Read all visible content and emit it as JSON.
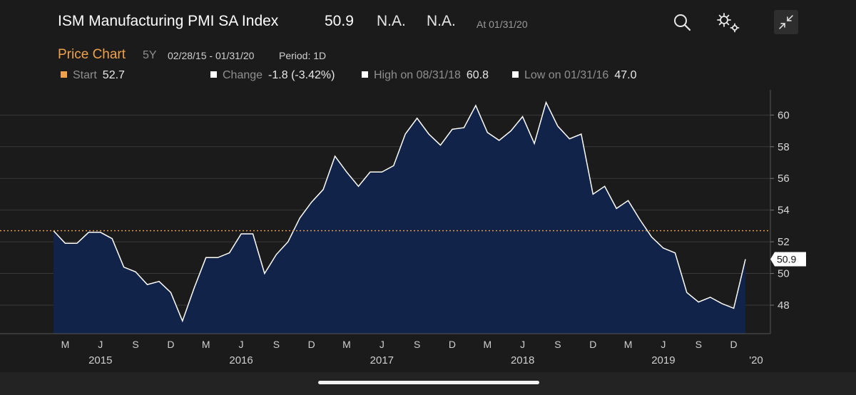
{
  "header": {
    "title": "ISM Manufacturing PMI SA Index",
    "last_value": "50.9",
    "change_field": "N.A.",
    "pct_field": "N.A.",
    "as_of": "At 01/31/20"
  },
  "subheader": {
    "chart_type": "Price Chart",
    "range": "5Y",
    "dates": "02/28/15 - 01/31/20",
    "period": "Period: 1D"
  },
  "stats": {
    "start_label": "Start",
    "start_value": "52.7",
    "change_label": "Change",
    "change_value": "-1.8 (-3.42%)",
    "high_label": "High on 08/31/18",
    "high_value": "60.8",
    "low_label": "Low on 01/31/16",
    "low_value": "47.0"
  },
  "colors": {
    "accent": "#f0a24a",
    "area_fill": "#12234a",
    "line": "#ffffff",
    "grid": "#3a3a3a"
  },
  "icons": {
    "search": "search-icon",
    "settings": "gear-icon",
    "collapse": "collapse-icon"
  },
  "chart_data": {
    "type": "area",
    "title": "ISM Manufacturing PMI SA Index",
    "x_start": "2015-02",
    "x": [
      "2015-02",
      "2015-03",
      "2015-04",
      "2015-05",
      "2015-06",
      "2015-07",
      "2015-08",
      "2015-09",
      "2015-10",
      "2015-11",
      "2015-12",
      "2016-01",
      "2016-02",
      "2016-03",
      "2016-04",
      "2016-05",
      "2016-06",
      "2016-07",
      "2016-08",
      "2016-09",
      "2016-10",
      "2016-11",
      "2016-12",
      "2017-01",
      "2017-02",
      "2017-03",
      "2017-04",
      "2017-05",
      "2017-06",
      "2017-07",
      "2017-08",
      "2017-09",
      "2017-10",
      "2017-11",
      "2017-12",
      "2018-01",
      "2018-02",
      "2018-03",
      "2018-04",
      "2018-05",
      "2018-06",
      "2018-07",
      "2018-08",
      "2018-09",
      "2018-10",
      "2018-11",
      "2018-12",
      "2019-01",
      "2019-02",
      "2019-03",
      "2019-04",
      "2019-05",
      "2019-06",
      "2019-07",
      "2019-08",
      "2019-09",
      "2019-10",
      "2019-11",
      "2019-12",
      "2020-01"
    ],
    "values": [
      52.7,
      51.9,
      51.9,
      52.6,
      52.6,
      52.2,
      50.4,
      50.1,
      49.3,
      49.5,
      48.8,
      47.0,
      49.1,
      51.0,
      51.0,
      51.3,
      52.5,
      52.5,
      50.0,
      51.2,
      52.0,
      53.5,
      54.5,
      55.3,
      57.4,
      56.4,
      55.5,
      56.4,
      56.4,
      56.8,
      58.8,
      59.8,
      58.8,
      58.1,
      59.1,
      59.2,
      60.6,
      58.9,
      58.4,
      59.0,
      59.9,
      58.2,
      60.8,
      59.3,
      58.5,
      58.8,
      55.0,
      55.5,
      54.1,
      54.6,
      53.4,
      52.3,
      51.6,
      51.3,
      48.8,
      48.2,
      48.5,
      48.1,
      47.8,
      50.9
    ],
    "start_reference": 52.7,
    "last_label": "50.9",
    "ylim": [
      46.2,
      61.5
    ],
    "yticks": [
      "48",
      "50",
      "52",
      "54",
      "56",
      "58",
      "60"
    ],
    "x_month_ticks": [
      {
        "label": "M",
        "month": "2015-03"
      },
      {
        "label": "J",
        "month": "2015-06"
      },
      {
        "label": "S",
        "month": "2015-09"
      },
      {
        "label": "D",
        "month": "2015-12"
      },
      {
        "label": "M",
        "month": "2016-03"
      },
      {
        "label": "J",
        "month": "2016-06"
      },
      {
        "label": "S",
        "month": "2016-09"
      },
      {
        "label": "D",
        "month": "2016-12"
      },
      {
        "label": "M",
        "month": "2017-03"
      },
      {
        "label": "J",
        "month": "2017-06"
      },
      {
        "label": "S",
        "month": "2017-09"
      },
      {
        "label": "D",
        "month": "2017-12"
      },
      {
        "label": "M",
        "month": "2018-03"
      },
      {
        "label": "J",
        "month": "2018-06"
      },
      {
        "label": "S",
        "month": "2018-09"
      },
      {
        "label": "D",
        "month": "2018-12"
      },
      {
        "label": "M",
        "month": "2019-03"
      },
      {
        "label": "J",
        "month": "2019-06"
      },
      {
        "label": "S",
        "month": "2019-09"
      },
      {
        "label": "D",
        "month": "2019-12"
      }
    ],
    "x_year_ticks": [
      {
        "label": "2015",
        "month": "2015-06"
      },
      {
        "label": "2016",
        "month": "2016-06"
      },
      {
        "label": "2017",
        "month": "2017-06"
      },
      {
        "label": "2018",
        "month": "2018-06"
      },
      {
        "label": "2019",
        "month": "2019-06"
      },
      {
        "label": "'20",
        "month": "2020-01"
      }
    ],
    "grid": true,
    "y_axis_side": "right"
  }
}
